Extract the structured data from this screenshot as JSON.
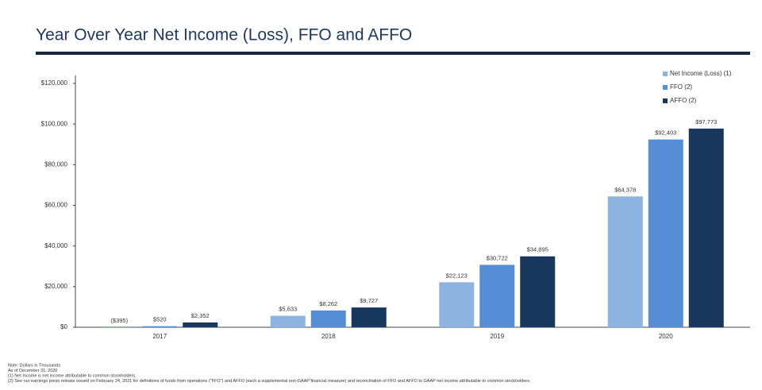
{
  "chart_data": {
    "type": "bar",
    "title": "Year Over Year Net Income (Loss), FFO and AFFO",
    "categories": [
      "2017",
      "2018",
      "2019",
      "2020"
    ],
    "series": [
      {
        "name": "Net Income (Loss) (1)",
        "color": "#8db3e2",
        "values": [
          -395,
          5633,
          22123,
          64378
        ],
        "value_labels": [
          "($395)",
          "$5,633",
          "$22,123",
          "$64,378"
        ]
      },
      {
        "name": "FFO (2)",
        "color": "#558ed5",
        "values": [
          520,
          8262,
          30722,
          92403
        ],
        "value_labels": [
          "$520",
          "$8,262",
          "$30,722",
          "$92,403"
        ]
      },
      {
        "name": "AFFO (2)",
        "color": "#17375e",
        "values": [
          2352,
          9727,
          34895,
          97773
        ],
        "value_labels": [
          "$2,352",
          "$9,727",
          "$34,895",
          "$97,773"
        ]
      }
    ],
    "ylim": [
      0,
      120000
    ],
    "yticks": [
      {
        "value": 0,
        "label": "$0"
      },
      {
        "value": 20000,
        "label": "$20,000"
      },
      {
        "value": 40000,
        "label": "$40,000"
      },
      {
        "value": 60000,
        "label": "$60,000"
      },
      {
        "value": 80000,
        "label": "$80,000"
      },
      {
        "value": 100000,
        "label": "$100,000"
      },
      {
        "value": 120000,
        "label": "$120,000"
      }
    ],
    "grid": false,
    "legend": "upper right",
    "notes": [
      "Note: Dollars in Thousands",
      "As of December 31, 2020",
      "(1)  Net Income is net income attributable to common stockholders.",
      "(2)  See our earnings press release issued on February 24, 2021 for definitions of funds from operations (\"FFO\") and AFFO (each a supplemental non-GAAP financial measure) and reconciliation of  FFO and AFFO to GAAP net income attributable to common stockholders."
    ]
  }
}
